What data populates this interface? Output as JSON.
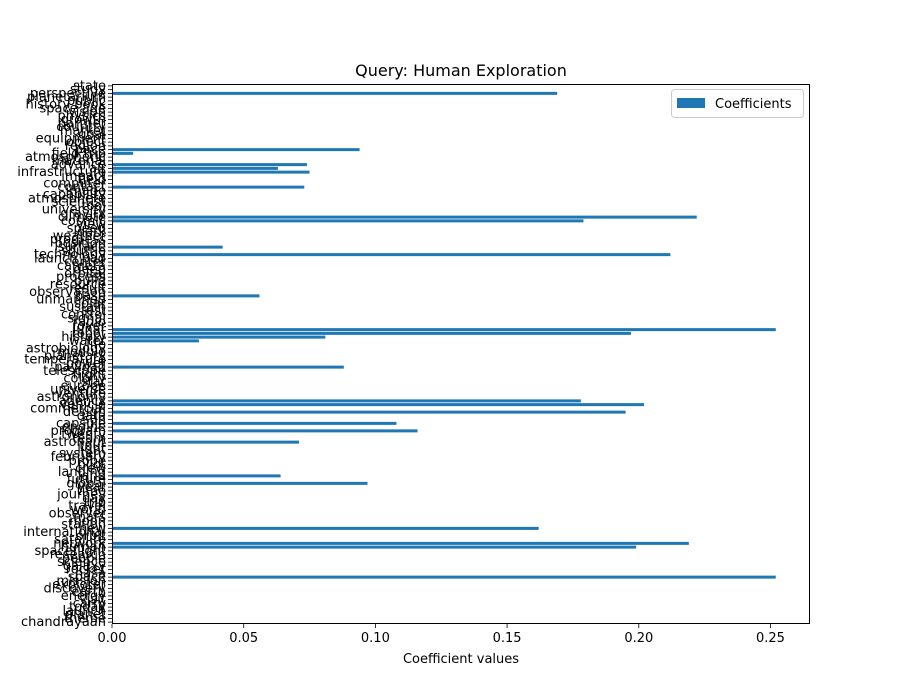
{
  "chart_data": {
    "type": "bar",
    "orientation": "horizontal",
    "title": "Query: Human Exploration",
    "xlabel": "Coefficient values",
    "ylabel": "",
    "xlim": [
      0,
      0.265
    ],
    "xticks": [
      "0.00",
      "0.05",
      "0.10",
      "0.15",
      "0.20",
      "0.25"
    ],
    "xtick_values": [
      0,
      0.05,
      0.1,
      0.15,
      0.2,
      0.25
    ],
    "legend": {
      "entries": [
        "Coefficients"
      ],
      "placement": "top-right"
    },
    "grid": false,
    "colors": {
      "bar": "#1f77b4",
      "axis": "#000000",
      "legend_border": "#cccccc"
    },
    "categories": [
      "chandrayaan",
      "theme",
      "planet",
      "launch",
      "today",
      "carry",
      "visit",
      "energy",
      "earth",
      "discovery",
      "explorer",
      "mission",
      "space",
      "nasa",
      "rocket",
      "galaxy",
      "science",
      "people",
      "research",
      "spaceflight",
      "human",
      "network",
      "satellite",
      "orbit",
      "international",
      "new",
      "station",
      "moon",
      "mars",
      "observer",
      "world",
      "travel",
      "trip",
      "day",
      "journey",
      "time",
      "year",
      "global",
      "future",
      "land",
      "landing",
      "crew",
      "pilot",
      "probe",
      "february",
      "system",
      "light",
      "tour",
      "astronaut",
      "team",
      "twenty",
      "program",
      "engine",
      "capsule",
      "sun",
      "data",
      "design",
      "commercial",
      "vehicle",
      "agency",
      "astronomy",
      "venture",
      "universe",
      "europe",
      "star",
      "colony",
      "flight",
      "telescope",
      "payload",
      "power",
      "temperature",
      "planetary",
      "module",
      "astrobiology",
      "life",
      "water",
      "history",
      "robot",
      "lunar",
      "rover",
      "radio",
      "signal",
      "control",
      "test",
      "sustain",
      "solar",
      "unmanned",
      "base",
      "observation",
      "result",
      "resource",
      "build",
      "process",
      "orbital",
      "deep",
      "camera",
      "center",
      "launch pad",
      "technology",
      "shuttle",
      "surface",
      "position",
      "progress",
      "weather",
      "dark",
      "speed",
      "view",
      "cosmic",
      "climate",
      "gravity",
      "university",
      "tool",
      "scientist",
      "atmosphere",
      "capability",
      "image",
      "contact",
      "computer",
      "field",
      "impact",
      "infrastructure",
      "air",
      "advance",
      "material",
      "atmospheric",
      "field trip",
      "pace",
      "region",
      "object",
      "equipment",
      "goal",
      "market",
      "country",
      "partner",
      "growth",
      "physics",
      "vision",
      "space age",
      "history book",
      "public",
      "planetarium",
      "perspective",
      "study",
      "state"
    ],
    "values": [
      0,
      0,
      0,
      0,
      0,
      0,
      0,
      0,
      0,
      0,
      0,
      0,
      0.252,
      0,
      0,
      0,
      0,
      0,
      0,
      0,
      0.199,
      0.219,
      0,
      0,
      0,
      0.162,
      0,
      0,
      0,
      0,
      0,
      0,
      0,
      0,
      0,
      0,
      0,
      0.097,
      0,
      0.064,
      0,
      0,
      0,
      0,
      0,
      0,
      0,
      0,
      0.071,
      0,
      0,
      0.116,
      0,
      0.108,
      0,
      0,
      0.195,
      0,
      0.202,
      0.178,
      0,
      0,
      0,
      0,
      0,
      0,
      0,
      0,
      0.088,
      0,
      0,
      0,
      0,
      0,
      0,
      0.033,
      0.081,
      0.197,
      0.252,
      0,
      0,
      0,
      0,
      0,
      0,
      0,
      0,
      0.056,
      0,
      0,
      0,
      0,
      0,
      0,
      0,
      0,
      0,
      0,
      0.212,
      0,
      0.042,
      0,
      0,
      0,
      0,
      0,
      0,
      0.179,
      0.222,
      0,
      0,
      0,
      0,
      0,
      0,
      0,
      0.073,
      0,
      0,
      0,
      0.075,
      0.063,
      0.074,
      0,
      0,
      0.008,
      0.094,
      0,
      0,
      0,
      0,
      0,
      0,
      0,
      0,
      0,
      0,
      0,
      0,
      0,
      0,
      0.169,
      0,
      0
    ]
  }
}
